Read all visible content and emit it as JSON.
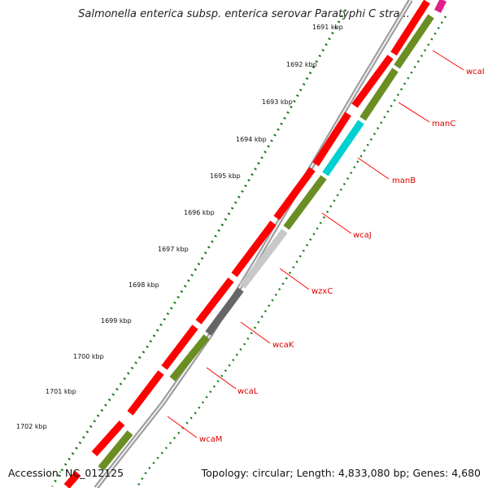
{
  "title": "Salmonella enterica subsp. enterica serovar Paratyphi C stra...",
  "footer": {
    "accession": "Accession: NC_012125",
    "summary": "Topology: circular; Length: 4,833,080 bp; Genes: 4,680"
  },
  "colors": {
    "forward_cds": "#ff0000",
    "olive_cds": "#6b8e23",
    "cyan_cds": "#00d0d0",
    "light_gray_cds": "#c8c8c8",
    "dark_gray_cds": "#666666",
    "magenta_cds": "#e0208a",
    "label": "#dd0000",
    "ticks": "#1a7a1a"
  },
  "ticks": [
    {
      "label": "1691 kbp"
    },
    {
      "label": "1692 kbp"
    },
    {
      "label": "1693 kbp"
    },
    {
      "label": "1694 kbp"
    },
    {
      "label": "1695 kbp"
    },
    {
      "label": "1696 kbp"
    },
    {
      "label": "1697 kbp"
    },
    {
      "label": "1698 kbp"
    },
    {
      "label": "1699 kbp"
    },
    {
      "label": "1700 kbp"
    },
    {
      "label": "1701 kbp"
    },
    {
      "label": "1702 kbp"
    }
  ],
  "genes": [
    {
      "name": "wcaI"
    },
    {
      "name": "manC"
    },
    {
      "name": "manB"
    },
    {
      "name": "wcaJ"
    },
    {
      "name": "wzxC"
    },
    {
      "name": "wcaK"
    },
    {
      "name": "wcaL"
    },
    {
      "name": "wcaM"
    }
  ]
}
